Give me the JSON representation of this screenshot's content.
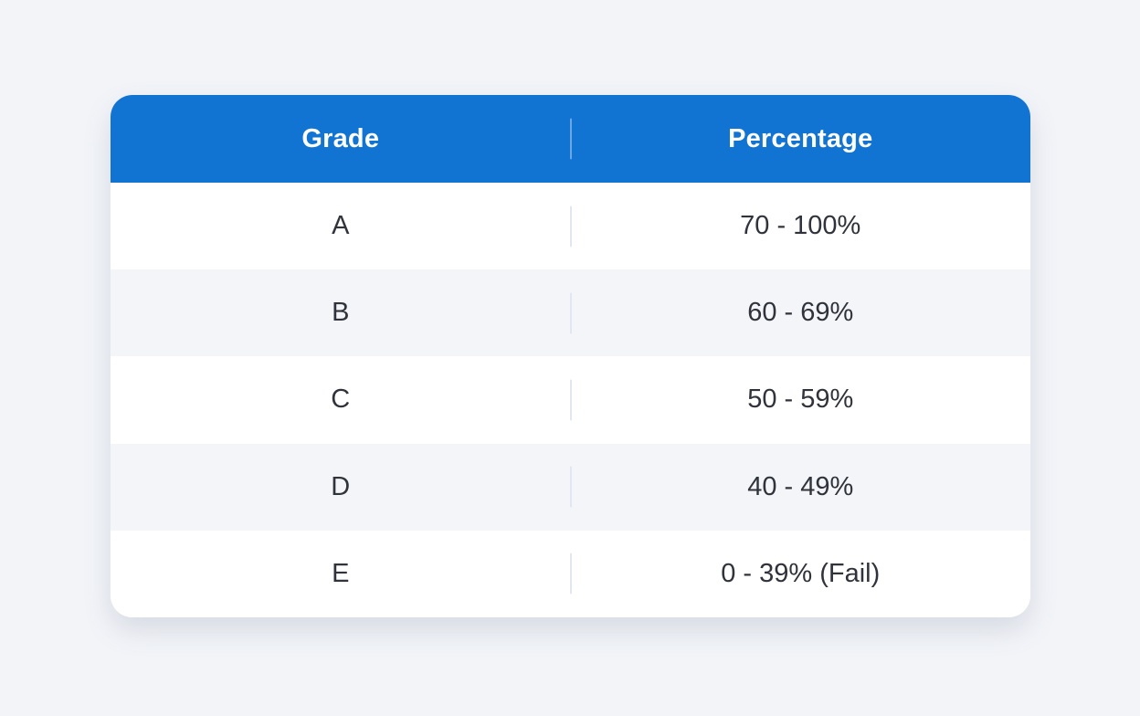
{
  "chart_data": {
    "type": "table",
    "title": "",
    "columns": [
      "Grade",
      "Percentage"
    ],
    "rows": [
      [
        "A",
        "70 - 100%"
      ],
      [
        "B",
        "60 - 69%"
      ],
      [
        "C",
        "50 - 59%"
      ],
      [
        "D",
        "40 - 49%"
      ],
      [
        "E",
        "0 - 39% (Fail)"
      ]
    ]
  },
  "table": {
    "header": {
      "grade_label": "Grade",
      "percentage_label": "Percentage"
    },
    "rows": [
      {
        "grade": "A",
        "percentage": "70 - 100%"
      },
      {
        "grade": "B",
        "percentage": "60 - 69%"
      },
      {
        "grade": "C",
        "percentage": "50 - 59%"
      },
      {
        "grade": "D",
        "percentage": "40 - 49%"
      },
      {
        "grade": "E",
        "percentage": "0 - 39% (Fail)"
      }
    ]
  },
  "colors": {
    "header_bg": "#1173D2",
    "header_text": "#FFFFFF",
    "row_bg": "#FFFFFF",
    "row_alt_bg": "#F4F5F9",
    "page_bg": "#F2F4F8",
    "cell_text": "#30333B",
    "row_divider": "#E2E6F0",
    "header_divider": "rgba(255,255,255,0.38)"
  }
}
